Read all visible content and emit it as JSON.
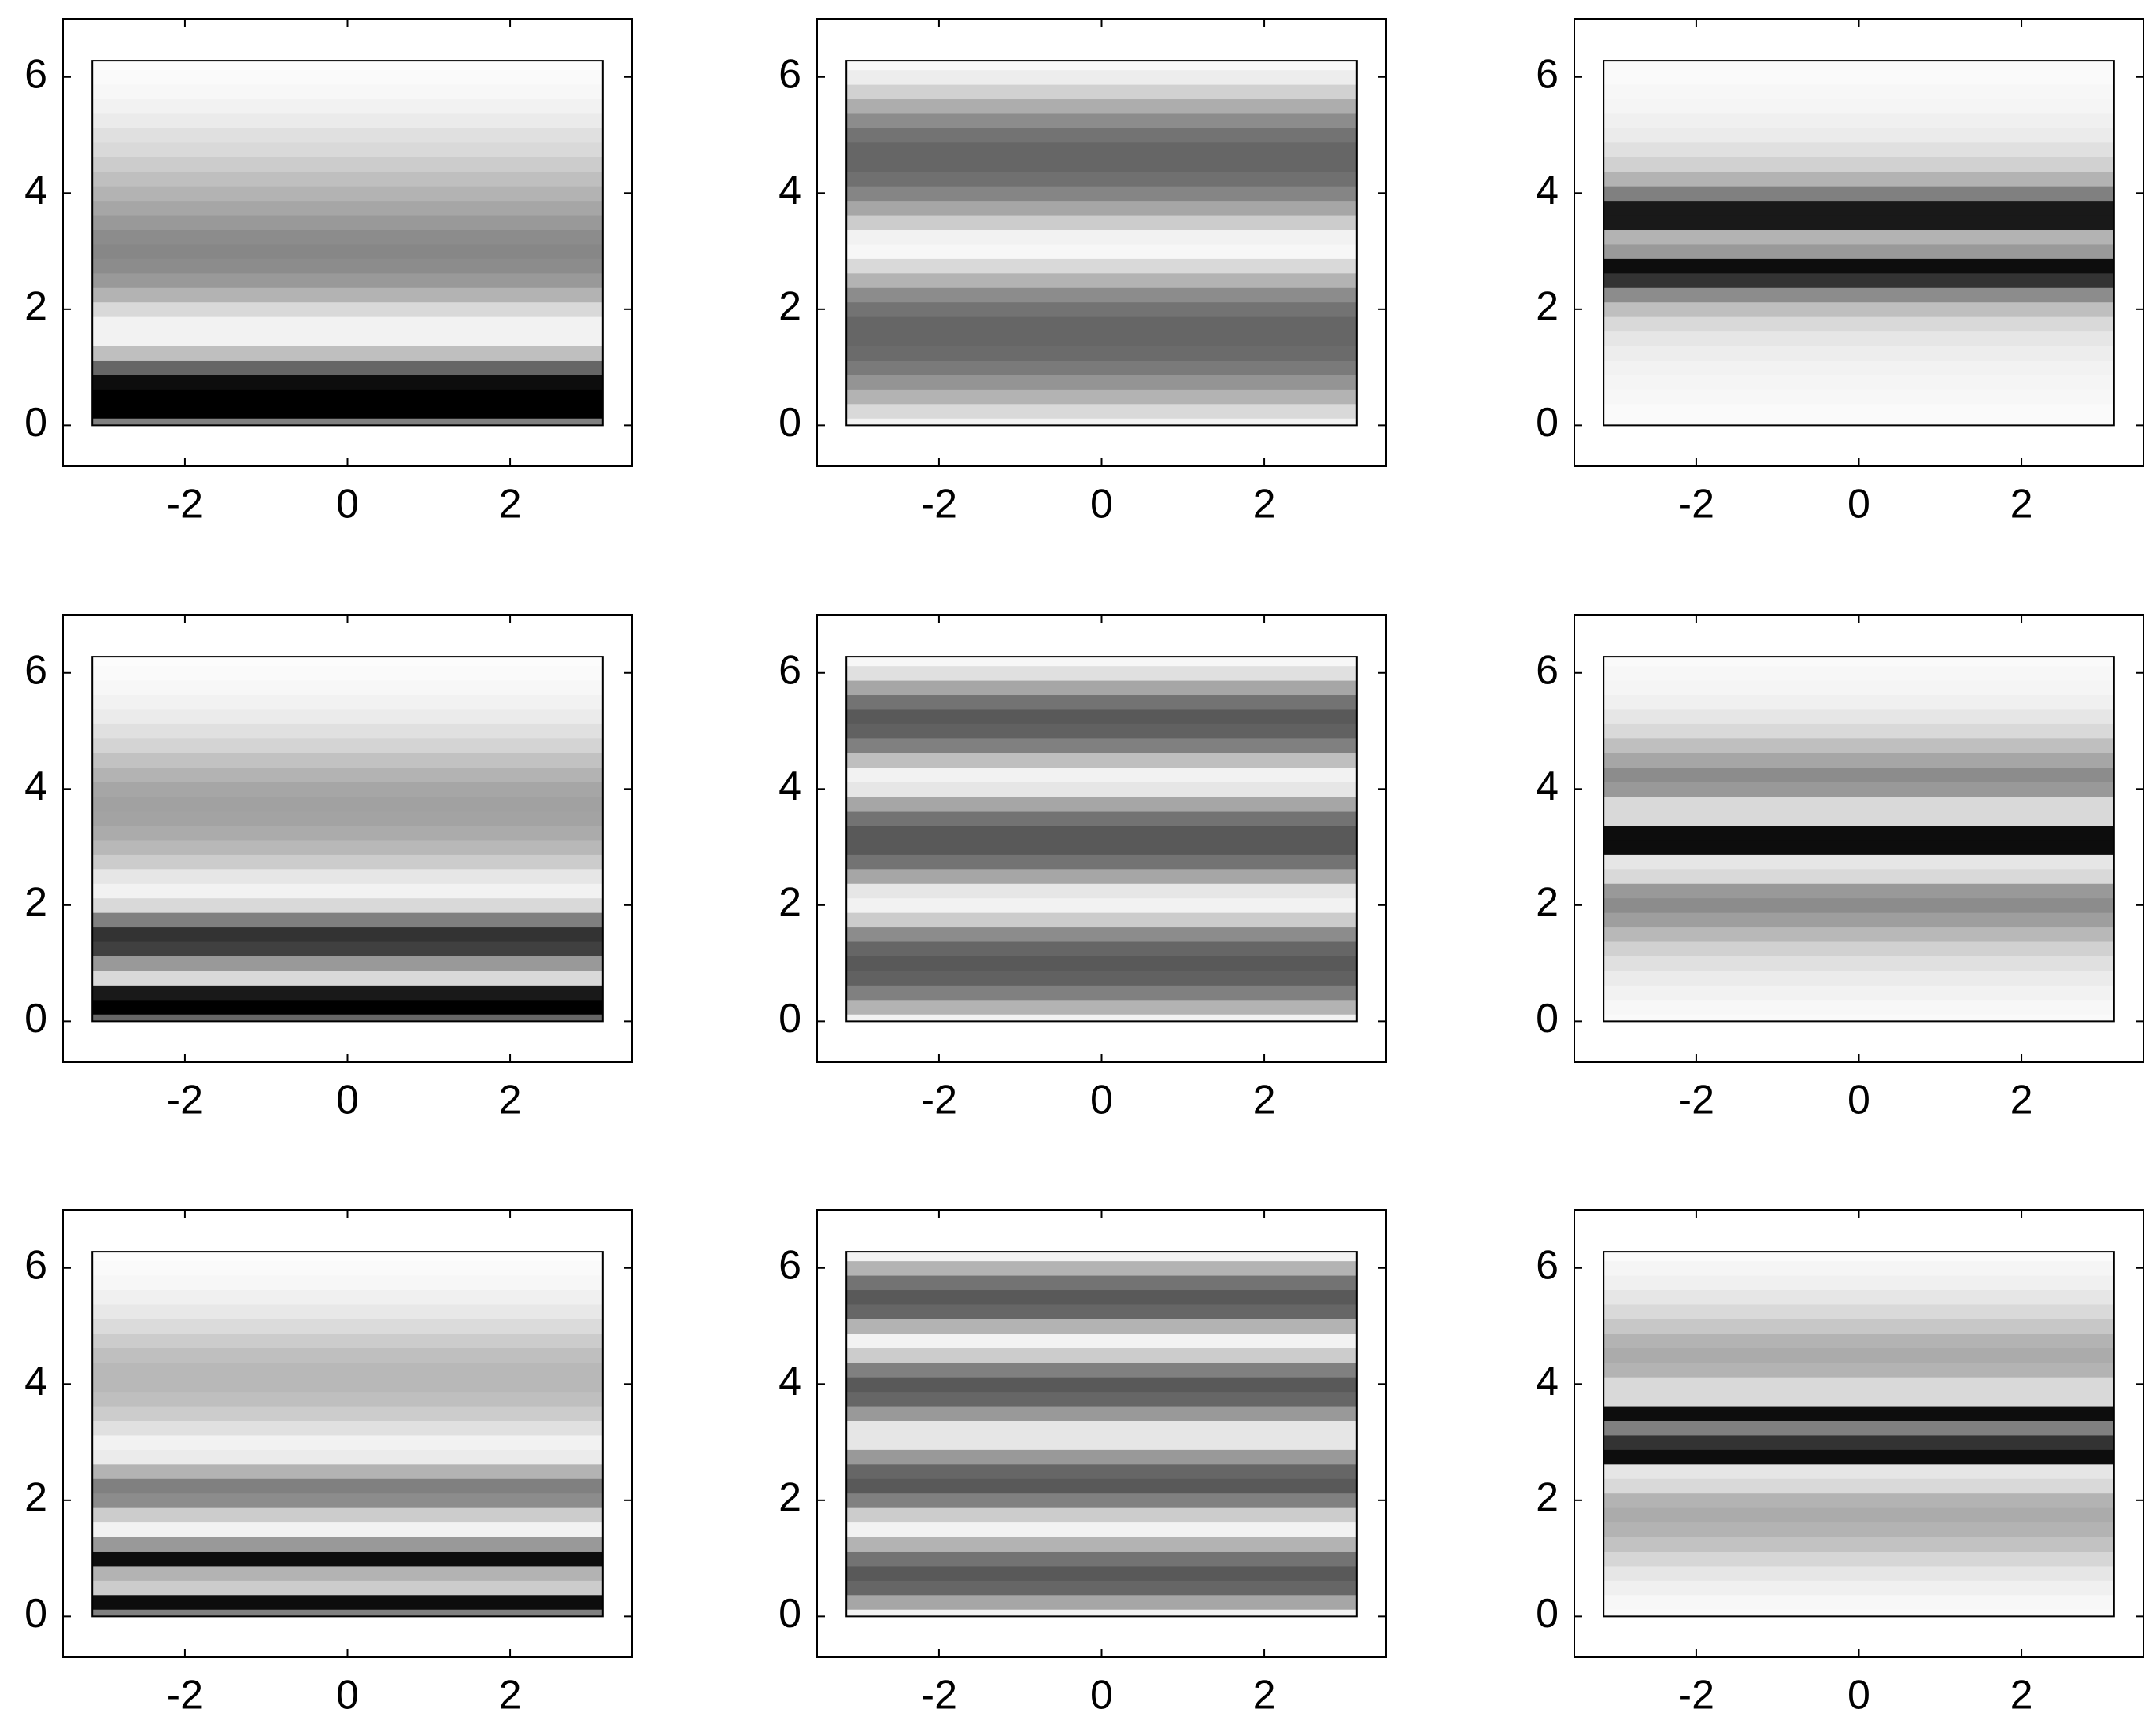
{
  "chart_data": [
    {
      "type": "heatmap",
      "xlim": [
        -3.5,
        3.5
      ],
      "ylim": [
        -0.7,
        7
      ],
      "xticks": [
        -2,
        0,
        2
      ],
      "yticks": [
        0,
        2,
        4,
        6
      ],
      "extent": [
        -3.14,
        3.14,
        0,
        6.28
      ],
      "y": [
        0,
        0.25,
        0.5,
        0.75,
        1,
        1.25,
        1.5,
        1.75,
        2,
        2.25,
        2.5,
        2.75,
        3,
        3.25,
        3.5,
        3.75,
        4,
        4.25,
        4.5,
        4.75,
        5,
        5.25,
        5.5,
        5.75,
        6,
        6.25
      ],
      "values": [
        0.5,
        1,
        1,
        0.95,
        0.6,
        0.25,
        0.05,
        0.05,
        0.15,
        0.3,
        0.4,
        0.45,
        0.47,
        0.45,
        0.4,
        0.35,
        0.3,
        0.25,
        0.2,
        0.15,
        0.12,
        0.08,
        0.05,
        0.03,
        0.02,
        0.01
      ]
    },
    {
      "type": "heatmap",
      "xlim": [
        -3.5,
        3.5
      ],
      "ylim": [
        -0.7,
        7
      ],
      "xticks": [
        -2,
        0,
        2
      ],
      "yticks": [
        0,
        2,
        4,
        6
      ],
      "extent": [
        -3.14,
        3.14,
        0,
        6.28
      ],
      "y": [
        0,
        0.25,
        0.5,
        0.75,
        1,
        1.25,
        1.5,
        1.75,
        2,
        2.25,
        2.5,
        2.75,
        3,
        3.25,
        3.5,
        3.75,
        4,
        4.25,
        4.5,
        4.75,
        5,
        5.25,
        5.5,
        5.75,
        6,
        6.25
      ],
      "values": [
        0.05,
        0.15,
        0.3,
        0.42,
        0.52,
        0.58,
        0.6,
        0.6,
        0.55,
        0.45,
        0.3,
        0.15,
        0.03,
        0.05,
        0.2,
        0.35,
        0.48,
        0.56,
        0.6,
        0.6,
        0.55,
        0.45,
        0.32,
        0.18,
        0.07,
        0.02
      ]
    },
    {
      "type": "heatmap",
      "xlim": [
        -3.5,
        3.5
      ],
      "ylim": [
        -0.7,
        7
      ],
      "xticks": [
        -2,
        0,
        2
      ],
      "yticks": [
        0,
        2,
        4,
        6
      ],
      "extent": [
        -3.14,
        3.14,
        0,
        6.28
      ],
      "y": [
        0,
        0.25,
        0.5,
        0.75,
        1,
        1.25,
        1.5,
        1.75,
        2,
        2.25,
        2.5,
        2.75,
        3,
        3.25,
        3.5,
        3.75,
        4,
        4.25,
        4.5,
        4.75,
        5,
        5.25,
        5.5,
        5.75,
        6,
        6.25
      ],
      "values": [
        0.02,
        0.02,
        0.03,
        0.04,
        0.05,
        0.07,
        0.1,
        0.15,
        0.25,
        0.45,
        0.8,
        0.95,
        0.4,
        0.3,
        0.9,
        0.9,
        0.5,
        0.3,
        0.18,
        0.12,
        0.08,
        0.06,
        0.04,
        0.03,
        0.02,
        0.02
      ]
    },
    {
      "type": "heatmap",
      "xlim": [
        -3.5,
        3.5
      ],
      "ylim": [
        -0.7,
        7
      ],
      "xticks": [
        -2,
        0,
        2
      ],
      "yticks": [
        0,
        2,
        4,
        6
      ],
      "extent": [
        -3.14,
        3.14,
        0,
        6.28
      ],
      "y": [
        0,
        0.25,
        0.5,
        0.75,
        1,
        1.25,
        1.5,
        1.75,
        2,
        2.25,
        2.5,
        2.75,
        3,
        3.25,
        3.5,
        3.75,
        4,
        4.25,
        4.5,
        4.75,
        5,
        5.25,
        5.5,
        5.75,
        6,
        6.25
      ],
      "values": [
        0.6,
        1,
        0.9,
        0.15,
        0.4,
        0.75,
        0.8,
        0.5,
        0.15,
        0.05,
        0.1,
        0.2,
        0.28,
        0.33,
        0.36,
        0.37,
        0.35,
        0.3,
        0.24,
        0.17,
        0.12,
        0.08,
        0.05,
        0.03,
        0.02,
        0.01
      ]
    },
    {
      "type": "heatmap",
      "xlim": [
        -3.5,
        3.5
      ],
      "ylim": [
        -0.7,
        7
      ],
      "xticks": [
        -2,
        0,
        2
      ],
      "yticks": [
        0,
        2,
        4,
        6
      ],
      "extent": [
        -3.14,
        3.14,
        0,
        6.28
      ],
      "y": [
        0,
        0.25,
        0.5,
        0.75,
        1,
        1.25,
        1.5,
        1.75,
        2,
        2.25,
        2.5,
        2.75,
        3,
        3.25,
        3.5,
        3.75,
        4,
        4.25,
        4.5,
        4.75,
        5,
        5.25,
        5.5,
        5.75,
        6,
        6.25
      ],
      "values": [
        0.05,
        0.3,
        0.5,
        0.62,
        0.65,
        0.6,
        0.45,
        0.2,
        0.05,
        0.1,
        0.35,
        0.55,
        0.65,
        0.65,
        0.55,
        0.35,
        0.1,
        0.05,
        0.25,
        0.5,
        0.62,
        0.65,
        0.55,
        0.35,
        0.12,
        0.03
      ]
    },
    {
      "type": "heatmap",
      "xlim": [
        -3.5,
        3.5
      ],
      "ylim": [
        -0.7,
        7
      ],
      "xticks": [
        -2,
        0,
        2
      ],
      "yticks": [
        0,
        2,
        4,
        6
      ],
      "extent": [
        -3.14,
        3.14,
        0,
        6.28
      ],
      "y": [
        0,
        0.25,
        0.5,
        0.75,
        1,
        1.25,
        1.5,
        1.75,
        2,
        2.25,
        2.5,
        2.75,
        3,
        3.25,
        3.5,
        3.75,
        4,
        4.25,
        4.5,
        4.75,
        5,
        5.25,
        5.5,
        5.75,
        6,
        6.25
      ],
      "values": [
        0.02,
        0.03,
        0.05,
        0.08,
        0.12,
        0.18,
        0.28,
        0.38,
        0.45,
        0.4,
        0.15,
        0.1,
        0.95,
        0.95,
        0.15,
        0.15,
        0.4,
        0.45,
        0.35,
        0.25,
        0.15,
        0.1,
        0.06,
        0.04,
        0.03,
        0.02
      ]
    },
    {
      "type": "heatmap",
      "xlim": [
        -3.5,
        3.5
      ],
      "ylim": [
        -0.7,
        7
      ],
      "xticks": [
        -2,
        0,
        2
      ],
      "yticks": [
        0,
        2,
        4,
        6
      ],
      "extent": [
        -3.14,
        3.14,
        0,
        6.28
      ],
      "y": [
        0,
        0.25,
        0.5,
        0.75,
        1,
        1.25,
        1.5,
        1.75,
        2,
        2.25,
        2.5,
        2.75,
        3,
        3.25,
        3.5,
        3.75,
        4,
        4.25,
        4.5,
        4.75,
        5,
        5.25,
        5.5,
        5.75,
        6,
        6.25
      ],
      "values": [
        0.5,
        0.95,
        0.2,
        0.3,
        0.95,
        0.4,
        0.05,
        0.2,
        0.45,
        0.5,
        0.3,
        0.08,
        0.05,
        0.12,
        0.2,
        0.25,
        0.28,
        0.28,
        0.25,
        0.2,
        0.14,
        0.09,
        0.06,
        0.03,
        0.02,
        0.01
      ]
    },
    {
      "type": "heatmap",
      "xlim": [
        -3.5,
        3.5
      ],
      "ylim": [
        -0.7,
        7
      ],
      "xticks": [
        -2,
        0,
        2
      ],
      "yticks": [
        0,
        2,
        4,
        6
      ],
      "extent": [
        -3.14,
        3.14,
        0,
        6.28
      ],
      "y": [
        0,
        0.25,
        0.5,
        0.75,
        1,
        1.25,
        1.5,
        1.75,
        2,
        2.25,
        2.5,
        2.75,
        3,
        3.25,
        3.5,
        3.75,
        4,
        4.25,
        4.5,
        4.75,
        5,
        5.25,
        5.5,
        5.75,
        6,
        6.25
      ],
      "values": [
        0.05,
        0.35,
        0.6,
        0.65,
        0.55,
        0.3,
        0.05,
        0.2,
        0.5,
        0.65,
        0.6,
        0.4,
        0.1,
        0.1,
        0.4,
        0.6,
        0.65,
        0.5,
        0.2,
        0.05,
        0.3,
        0.6,
        0.65,
        0.55,
        0.3,
        0.05
      ]
    },
    {
      "type": "heatmap",
      "xlim": [
        -3.5,
        3.5
      ],
      "ylim": [
        -0.7,
        7
      ],
      "xticks": [
        -2,
        0,
        2
      ],
      "yticks": [
        0,
        2,
        4,
        6
      ],
      "extent": [
        -3.14,
        3.14,
        0,
        6.28
      ],
      "y": [
        0,
        0.25,
        0.5,
        0.75,
        1,
        1.25,
        1.5,
        1.75,
        2,
        2.25,
        2.5,
        2.75,
        3,
        3.25,
        3.5,
        3.75,
        4,
        4.25,
        4.5,
        4.75,
        5,
        5.25,
        5.5,
        5.75,
        6,
        6.25
      ],
      "values": [
        0.02,
        0.03,
        0.06,
        0.1,
        0.16,
        0.24,
        0.3,
        0.33,
        0.3,
        0.15,
        0.1,
        0.95,
        0.8,
        0.5,
        0.95,
        0.15,
        0.15,
        0.3,
        0.33,
        0.3,
        0.22,
        0.15,
        0.1,
        0.06,
        0.04,
        0.02
      ]
    }
  ]
}
